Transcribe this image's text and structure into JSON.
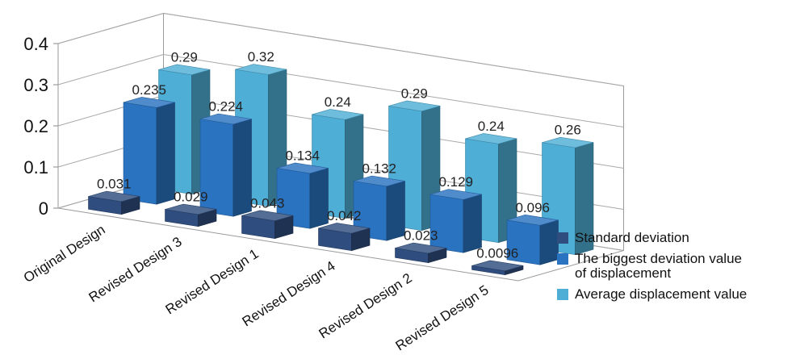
{
  "chart_data": {
    "type": "bar",
    "subtype": "3d-clustered-depth",
    "categories": [
      "Original Design",
      "Revised Design 3",
      "Revised Design 1",
      "Revised Design 4",
      "Revised Design 2",
      "Revised Design 5"
    ],
    "series": [
      {
        "name": "Standard deviation",
        "values": [
          "0.031",
          "0.029",
          "0.043",
          "0.042",
          "0.023",
          "0.0096"
        ],
        "color": "#2f4d7e"
      },
      {
        "name": "The biggest deviation value of displacement",
        "values": [
          "0.235",
          "0.224",
          "0.134",
          "0.132",
          "0.129",
          "0.096"
        ],
        "color": "#2a73c0"
      },
      {
        "name": "Average displacement value",
        "values": [
          "0.29",
          "0.32",
          "0.24",
          "0.29",
          "0.24",
          "0.26"
        ],
        "color": "#4faed6"
      }
    ],
    "y_ticks": [
      "0",
      "0.1",
      "0.2",
      "0.3",
      "0.4"
    ],
    "ylim": [
      0,
      0.4
    ],
    "grid": true,
    "legend_position": "right"
  }
}
